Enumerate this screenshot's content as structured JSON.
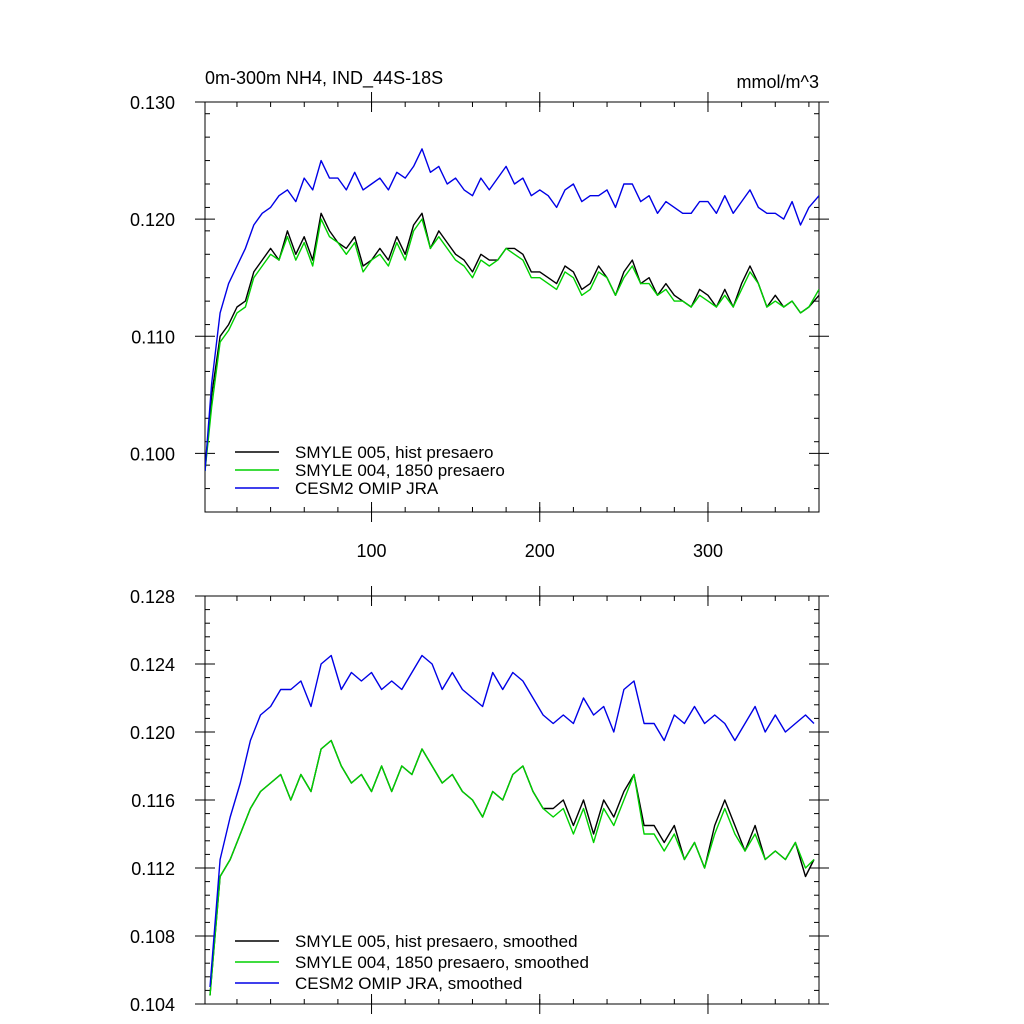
{
  "chart_data": [
    {
      "type": "line",
      "title": "0m-300m NH4, IND_44S-18S",
      "units": "mmol/m^3",
      "xlim": [
        1,
        366
      ],
      "ylim": [
        0.095,
        0.13
      ],
      "xticks": [
        100,
        200,
        300
      ],
      "xtick_labels": [
        "100",
        "200",
        "300"
      ],
      "yticks": [
        0.1,
        0.11,
        0.12,
        0.13
      ],
      "ytick_labels": [
        "0.100",
        "0.110",
        "0.120",
        "0.130"
      ],
      "legend_position": "lower-left",
      "series": [
        {
          "name": "SMYLE 005, hist presaero",
          "color": "#000000",
          "x": [
            1,
            5,
            10,
            15,
            20,
            25,
            30,
            35,
            40,
            45,
            50,
            55,
            60,
            65,
            70,
            75,
            80,
            85,
            90,
            95,
            100,
            105,
            110,
            115,
            120,
            125,
            130,
            135,
            140,
            145,
            150,
            155,
            160,
            165,
            170,
            175,
            180,
            185,
            190,
            195,
            200,
            205,
            210,
            215,
            220,
            225,
            230,
            235,
            240,
            245,
            250,
            255,
            260,
            265,
            270,
            275,
            280,
            285,
            290,
            295,
            300,
            305,
            310,
            315,
            320,
            325,
            330,
            335,
            340,
            345,
            350,
            355,
            360,
            366
          ],
          "y": [
            0.0985,
            0.105,
            0.11,
            0.111,
            0.1125,
            0.113,
            0.1155,
            0.1165,
            0.1175,
            0.1165,
            0.119,
            0.117,
            0.1185,
            0.1165,
            0.1205,
            0.119,
            0.118,
            0.1175,
            0.1185,
            0.116,
            0.1165,
            0.1175,
            0.1165,
            0.1185,
            0.117,
            0.1195,
            0.1205,
            0.1175,
            0.119,
            0.118,
            0.117,
            0.1165,
            0.1155,
            0.117,
            0.1165,
            0.1165,
            0.1175,
            0.1175,
            0.117,
            0.1155,
            0.1155,
            0.115,
            0.1145,
            0.116,
            0.1155,
            0.114,
            0.1145,
            0.116,
            0.115,
            0.1135,
            0.1155,
            0.1165,
            0.1145,
            0.115,
            0.1135,
            0.1145,
            0.1135,
            0.113,
            0.1125,
            0.114,
            0.1135,
            0.1125,
            0.114,
            0.1125,
            0.1145,
            0.116,
            0.1145,
            0.1125,
            0.1135,
            0.1125,
            0.113,
            0.112,
            0.1125,
            0.1135
          ]
        },
        {
          "name": "SMYLE 004, 1850 presaero",
          "color": "#00d000",
          "x": [
            1,
            5,
            10,
            15,
            20,
            25,
            30,
            35,
            40,
            45,
            50,
            55,
            60,
            65,
            70,
            75,
            80,
            85,
            90,
            95,
            100,
            105,
            110,
            115,
            120,
            125,
            130,
            135,
            140,
            145,
            150,
            155,
            160,
            165,
            170,
            175,
            180,
            185,
            190,
            195,
            200,
            205,
            210,
            215,
            220,
            225,
            230,
            235,
            240,
            245,
            250,
            255,
            260,
            265,
            270,
            275,
            280,
            285,
            290,
            295,
            300,
            305,
            310,
            315,
            320,
            325,
            330,
            335,
            340,
            345,
            350,
            355,
            360,
            366
          ],
          "y": [
            0.0985,
            0.104,
            0.1095,
            0.1105,
            0.112,
            0.1125,
            0.115,
            0.116,
            0.117,
            0.1165,
            0.1185,
            0.1165,
            0.118,
            0.116,
            0.12,
            0.1185,
            0.118,
            0.117,
            0.118,
            0.1155,
            0.1165,
            0.117,
            0.116,
            0.118,
            0.1165,
            0.119,
            0.12,
            0.1175,
            0.1185,
            0.1175,
            0.1165,
            0.116,
            0.115,
            0.1165,
            0.116,
            0.1165,
            0.1175,
            0.117,
            0.1165,
            0.115,
            0.115,
            0.1145,
            0.114,
            0.1155,
            0.115,
            0.1135,
            0.114,
            0.1155,
            0.115,
            0.1135,
            0.115,
            0.116,
            0.1145,
            0.1145,
            0.1135,
            0.114,
            0.113,
            0.113,
            0.1125,
            0.1135,
            0.113,
            0.1125,
            0.1135,
            0.1125,
            0.114,
            0.1155,
            0.1145,
            0.1125,
            0.113,
            0.1125,
            0.113,
            0.112,
            0.1125,
            0.114
          ]
        },
        {
          "name": "CESM2 OMIP JRA",
          "color": "#0000e6",
          "x": [
            1,
            5,
            10,
            15,
            20,
            25,
            30,
            35,
            40,
            45,
            50,
            55,
            60,
            65,
            70,
            75,
            80,
            85,
            90,
            95,
            100,
            105,
            110,
            115,
            120,
            125,
            130,
            135,
            140,
            145,
            150,
            155,
            160,
            165,
            170,
            175,
            180,
            185,
            190,
            195,
            200,
            205,
            210,
            215,
            220,
            225,
            230,
            235,
            240,
            245,
            250,
            255,
            260,
            265,
            270,
            275,
            280,
            285,
            290,
            295,
            300,
            305,
            310,
            315,
            320,
            325,
            330,
            335,
            340,
            345,
            350,
            355,
            360,
            366
          ],
          "y": [
            0.0985,
            0.106,
            0.112,
            0.1145,
            0.116,
            0.1175,
            0.1195,
            0.1205,
            0.121,
            0.122,
            0.1225,
            0.1215,
            0.1235,
            0.1225,
            0.125,
            0.1235,
            0.1235,
            0.1225,
            0.124,
            0.1225,
            0.123,
            0.1235,
            0.1225,
            0.124,
            0.1235,
            0.1245,
            0.126,
            0.124,
            0.1245,
            0.123,
            0.1235,
            0.1225,
            0.122,
            0.1235,
            0.1225,
            0.1235,
            0.1245,
            0.123,
            0.1235,
            0.122,
            0.1225,
            0.122,
            0.121,
            0.1225,
            0.123,
            0.1215,
            0.122,
            0.122,
            0.1225,
            0.121,
            0.123,
            0.123,
            0.1215,
            0.122,
            0.1205,
            0.1215,
            0.121,
            0.1205,
            0.1205,
            0.1215,
            0.1215,
            0.1205,
            0.122,
            0.1205,
            0.1215,
            0.1225,
            0.121,
            0.1205,
            0.1205,
            0.12,
            0.1215,
            0.1195,
            0.121,
            0.122
          ]
        }
      ]
    },
    {
      "type": "line",
      "xlim": [
        1,
        366
      ],
      "ylim": [
        0.104,
        0.128
      ],
      "xticks": [
        100,
        200,
        300
      ],
      "yticks": [
        0.104,
        0.108,
        0.112,
        0.116,
        0.12,
        0.124,
        0.128
      ],
      "ytick_labels": [
        "0.104",
        "0.108",
        "0.112",
        "0.116",
        "0.120",
        "0.124",
        "0.128"
      ],
      "legend_position": "lower-left",
      "series": [
        {
          "name": "SMYLE 005, hist presaero, smoothed",
          "color": "#000000",
          "x": [
            4,
            10,
            16,
            22,
            28,
            34,
            40,
            46,
            52,
            58,
            64,
            70,
            76,
            82,
            88,
            94,
            100,
            106,
            112,
            118,
            124,
            130,
            136,
            142,
            148,
            154,
            160,
            166,
            172,
            178,
            184,
            190,
            196,
            202,
            208,
            214,
            220,
            226,
            232,
            238,
            244,
            250,
            256,
            262,
            268,
            274,
            280,
            286,
            292,
            298,
            304,
            310,
            316,
            322,
            328,
            334,
            340,
            346,
            352,
            358,
            363
          ],
          "y": [
            0.1045,
            0.1115,
            0.1125,
            0.114,
            0.1155,
            0.1165,
            0.117,
            0.1175,
            0.116,
            0.1175,
            0.1165,
            0.119,
            0.1195,
            0.118,
            0.117,
            0.1175,
            0.1165,
            0.118,
            0.1165,
            0.118,
            0.1175,
            0.119,
            0.118,
            0.117,
            0.1175,
            0.1165,
            0.116,
            0.115,
            0.1165,
            0.116,
            0.1175,
            0.118,
            0.1165,
            0.1155,
            0.1155,
            0.116,
            0.1145,
            0.116,
            0.114,
            0.116,
            0.115,
            0.1165,
            0.1175,
            0.1145,
            0.1145,
            0.1135,
            0.1145,
            0.1125,
            0.1135,
            0.112,
            0.1145,
            0.116,
            0.1145,
            0.113,
            0.1145,
            0.1125,
            0.113,
            0.1125,
            0.1135,
            0.1115,
            0.1125
          ]
        },
        {
          "name": "SMYLE 004, 1850 presaero, smoothed",
          "color": "#00d000",
          "x": [
            4,
            10,
            16,
            22,
            28,
            34,
            40,
            46,
            52,
            58,
            64,
            70,
            76,
            82,
            88,
            94,
            100,
            106,
            112,
            118,
            124,
            130,
            136,
            142,
            148,
            154,
            160,
            166,
            172,
            178,
            184,
            190,
            196,
            202,
            208,
            214,
            220,
            226,
            232,
            238,
            244,
            250,
            256,
            262,
            268,
            274,
            280,
            286,
            292,
            298,
            304,
            310,
            316,
            322,
            328,
            334,
            340,
            346,
            352,
            358,
            363
          ],
          "y": [
            0.1045,
            0.1115,
            0.1125,
            0.114,
            0.1155,
            0.1165,
            0.117,
            0.1175,
            0.116,
            0.1175,
            0.1165,
            0.119,
            0.1195,
            0.118,
            0.117,
            0.1175,
            0.1165,
            0.118,
            0.1165,
            0.118,
            0.1175,
            0.119,
            0.118,
            0.117,
            0.1175,
            0.1165,
            0.116,
            0.115,
            0.1165,
            0.116,
            0.1175,
            0.118,
            0.1165,
            0.1155,
            0.115,
            0.1155,
            0.114,
            0.1155,
            0.1135,
            0.1155,
            0.1145,
            0.116,
            0.1175,
            0.114,
            0.114,
            0.113,
            0.114,
            0.1125,
            0.1135,
            0.112,
            0.114,
            0.1155,
            0.114,
            0.113,
            0.114,
            0.1125,
            0.113,
            0.1125,
            0.1135,
            0.112,
            0.1125
          ]
        },
        {
          "name": "CESM2 OMIP JRA, smoothed",
          "color": "#0000e6",
          "x": [
            4,
            10,
            16,
            22,
            28,
            34,
            40,
            46,
            52,
            58,
            64,
            70,
            76,
            82,
            88,
            94,
            100,
            106,
            112,
            118,
            124,
            130,
            136,
            142,
            148,
            154,
            160,
            166,
            172,
            178,
            184,
            190,
            196,
            202,
            208,
            214,
            220,
            226,
            232,
            238,
            244,
            250,
            256,
            262,
            268,
            274,
            280,
            286,
            292,
            298,
            304,
            310,
            316,
            322,
            328,
            334,
            340,
            346,
            352,
            358,
            363
          ],
          "y": [
            0.105,
            0.1125,
            0.115,
            0.117,
            0.1195,
            0.121,
            0.1215,
            0.1225,
            0.1225,
            0.123,
            0.1215,
            0.124,
            0.1245,
            0.1225,
            0.1235,
            0.123,
            0.1235,
            0.1225,
            0.123,
            0.1225,
            0.1235,
            0.1245,
            0.124,
            0.1225,
            0.1235,
            0.1225,
            0.122,
            0.1215,
            0.1235,
            0.1225,
            0.1235,
            0.123,
            0.122,
            0.121,
            0.1205,
            0.121,
            0.1205,
            0.122,
            0.121,
            0.1215,
            0.12,
            0.1225,
            0.123,
            0.1205,
            0.1205,
            0.1195,
            0.121,
            0.1205,
            0.1215,
            0.1205,
            0.121,
            0.1205,
            0.1195,
            0.1205,
            0.1215,
            0.12,
            0.121,
            0.12,
            0.1205,
            0.121,
            0.1205
          ]
        }
      ]
    }
  ]
}
